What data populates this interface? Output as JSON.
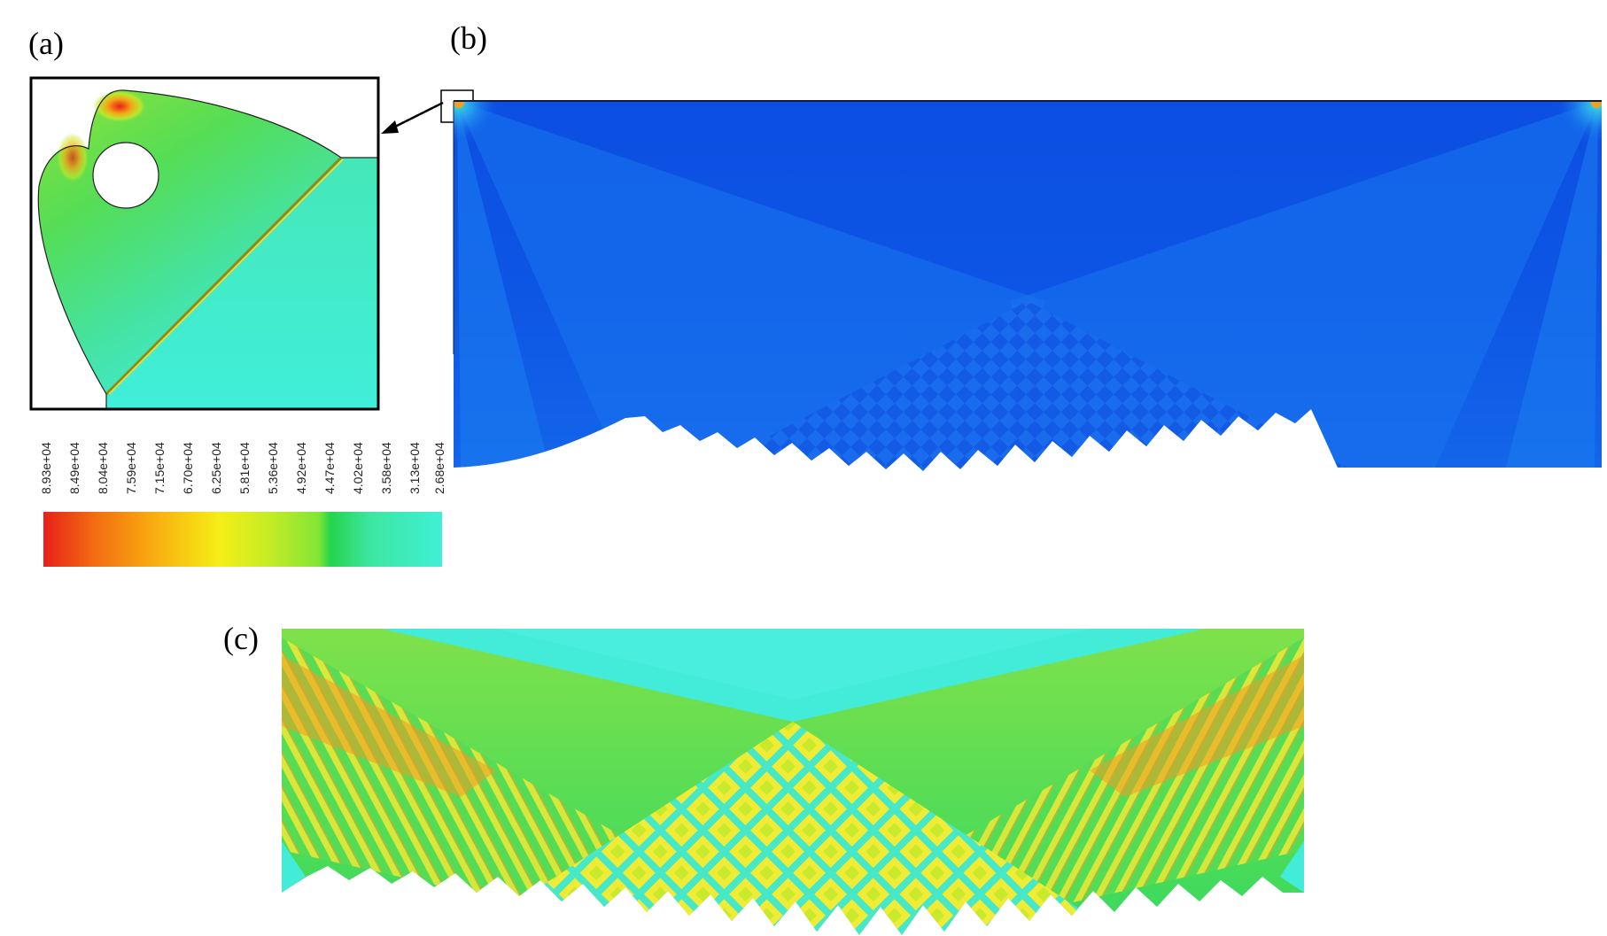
{
  "figure": {
    "panel_labels": {
      "a": "(a)",
      "b": "(b)",
      "c": "(c)"
    },
    "colorbar": {
      "ticks": [
        "8.93e+04",
        "8.49e+04",
        "8.04e+04",
        "7.59e+04",
        "7.15e+04",
        "6.70e+04",
        "6.25e+04",
        "5.81e+04",
        "5.36e+04",
        "4.92e+04",
        "4.47e+04",
        "4.02e+04",
        "3.58e+04",
        "3.13e+04",
        "2.68e+04"
      ],
      "colors": [
        "#e8201a",
        "#f36d12",
        "#f9ae10",
        "#f6e915",
        "#c8ec24",
        "#83e535",
        "#25d44c",
        "#3de6a0",
        "#3ff0d6"
      ]
    },
    "colors": {
      "deep_blue": "#0a4ce0",
      "mid_blue": "#1670ee",
      "cyan": "#40ecd8",
      "green": "#44d96a",
      "yellow": "#ece93a",
      "orange": "#f39a1e",
      "red": "#e8321b"
    }
  }
}
